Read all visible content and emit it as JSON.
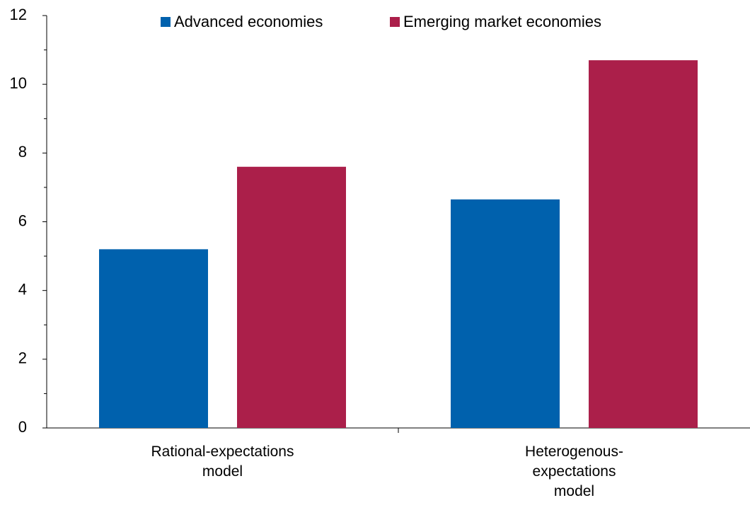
{
  "chart_data": {
    "type": "bar",
    "categories": [
      "Rational-expectations model",
      "Heterogenous-expectations model"
    ],
    "series": [
      {
        "name": "Advanced economies",
        "color": "#0061ad",
        "values": [
          5.2,
          6.65
        ]
      },
      {
        "name": "Emerging market economies",
        "color": "#ab1f4a",
        "values": [
          7.6,
          10.7
        ]
      }
    ],
    "ylim": [
      0,
      12
    ],
    "yticks": [
      0,
      2,
      4,
      6,
      8,
      10,
      12
    ],
    "minor_yticks": [
      1,
      3,
      5,
      7,
      9,
      11
    ],
    "legend": "top"
  }
}
